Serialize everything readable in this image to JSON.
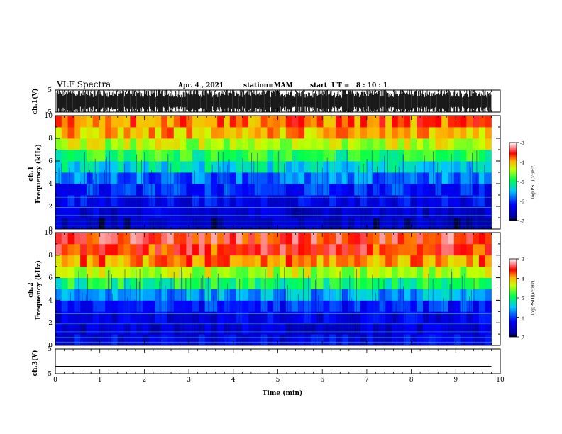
{
  "header": {
    "title": "VLF Spectra",
    "date": "Apr. 4 , 2021",
    "station": "station=MAM",
    "start": "start  UT =   8 : 10 : 1"
  },
  "chart_data": [
    {
      "type": "line",
      "panel": "waveform ch.1",
      "ylabel": "ch.1(V)",
      "yticks": [
        "5",
        "-5"
      ],
      "ylim": [
        -5,
        5
      ],
      "xlim": [
        0,
        10
      ],
      "description_values": "dense signal spanning approx -5 to 5 V over 0–9.8 min"
    },
    {
      "type": "heatmap",
      "panel": "spectrogram ch.1",
      "ylabel_top": "ch.1",
      "ylabel": "Frequency (kHz)",
      "yticks": [
        "0",
        "2",
        "4",
        "6",
        "8",
        "10"
      ],
      "ylim": [
        0,
        10
      ],
      "xlim": [
        0,
        10
      ],
      "data_end_min": 9.8,
      "colorbar": {
        "ticks": [
          "-3",
          "-4",
          "-5",
          "-6",
          "-7"
        ],
        "label": "log(PSD)(V²/Hz)",
        "range": [
          -7,
          -3
        ]
      },
      "profile": [
        {
          "f": 0.5,
          "v": -6.6
        },
        {
          "f": 1.5,
          "v": -6.5
        },
        {
          "f": 2.5,
          "v": -6.3
        },
        {
          "f": 3.5,
          "v": -6.1
        },
        {
          "f": 4.5,
          "v": -5.8
        },
        {
          "f": 5.5,
          "v": -5.3
        },
        {
          "f": 6.5,
          "v": -4.9
        },
        {
          "f": 7.5,
          "v": -4.4
        },
        {
          "f": 8.5,
          "v": -4.0
        },
        {
          "f": 9.5,
          "v": -3.8
        }
      ]
    },
    {
      "type": "heatmap",
      "panel": "spectrogram ch.2",
      "ylabel_top": "ch.2",
      "ylabel": "Frequency (kHz)",
      "yticks": [
        "0",
        "2",
        "4",
        "6",
        "8",
        "10"
      ],
      "ylim": [
        0,
        10
      ],
      "xlim": [
        0,
        10
      ],
      "data_end_min": 9.8,
      "colorbar": {
        "ticks": [
          "-3",
          "-4",
          "-5",
          "-6",
          "-7"
        ],
        "label": "log(PSD)(V²/Hz)",
        "range": [
          -7,
          -3
        ]
      },
      "profile": [
        {
          "f": 0.5,
          "v": -6.4
        },
        {
          "f": 1.5,
          "v": -6.5
        },
        {
          "f": 2.5,
          "v": -6.4
        },
        {
          "f": 3.5,
          "v": -6.1
        },
        {
          "f": 4.5,
          "v": -5.6
        },
        {
          "f": 5.5,
          "v": -5.0
        },
        {
          "f": 6.5,
          "v": -4.4
        },
        {
          "f": 7.5,
          "v": -3.9
        },
        {
          "f": 8.5,
          "v": -3.6
        },
        {
          "f": 9.5,
          "v": -3.5
        }
      ]
    },
    {
      "type": "line",
      "panel": "waveform ch.3",
      "ylabel": "ch.3(V)",
      "yticks": [
        "5",
        "-5"
      ],
      "ylim": [
        -5,
        5
      ],
      "xlim": [
        0,
        10
      ],
      "value": -2.0
    }
  ],
  "xaxis": {
    "label": "Time (min)",
    "ticks": [
      "0",
      "1",
      "2",
      "3",
      "4",
      "5",
      "6",
      "7",
      "8",
      "9",
      "10"
    ]
  }
}
